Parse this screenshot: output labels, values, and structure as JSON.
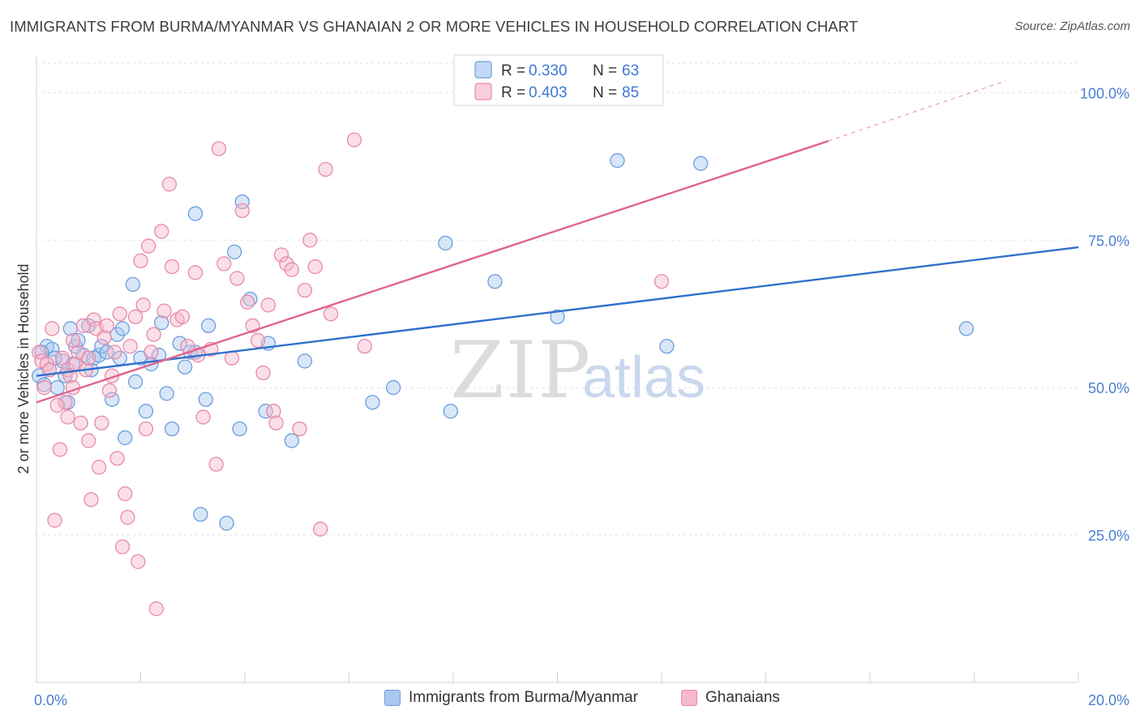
{
  "title": "IMMIGRANTS FROM BURMA/MYANMAR VS GHANAIAN 2 OR MORE VEHICLES IN HOUSEHOLD CORRELATION CHART",
  "source": "Source: ZipAtlas.com",
  "watermark": {
    "zip": "ZIP",
    "atlas": "atlas"
  },
  "colors": {
    "blue_fill": "#a9c8f0",
    "blue_stroke": "#6b9ee0",
    "blue_line": "#2f6fcc",
    "pink_fill": "#f6b8cc",
    "pink_stroke": "#e889a8",
    "pink_line": "#e0648f",
    "tick_label": "#4a7fd0",
    "grid": "#dde2ea"
  },
  "chart_data": {
    "type": "scatter",
    "title": "IMMIGRANTS FROM BURMA/MYANMAR VS GHANAIAN 2 OR MORE VEHICLES IN HOUSEHOLD CORRELATION CHART",
    "xlabel": "",
    "ylabel": "2 or more Vehicles in Household",
    "xlim": [
      0,
      20
    ],
    "ylim": [
      0,
      105
    ],
    "x_tick_labels": [
      "0.0%",
      "20.0%"
    ],
    "y_ticks": [
      25,
      50,
      75,
      100
    ],
    "y_tick_labels": [
      "25.0%",
      "50.0%",
      "75.0%",
      "100.0%"
    ],
    "grid": true,
    "legend_placement": "top-center",
    "legend": [
      {
        "r_label": "R = ",
        "r_value": "0.330",
        "n_label": "N = ",
        "n_value": "63"
      },
      {
        "r_label": "R = ",
        "r_value": "0.403",
        "n_label": "N = ",
        "n_value": "85"
      }
    ],
    "series": [
      {
        "name": "Immigrants from Burma/Myanmar",
        "color": "blue",
        "trend": {
          "x0": 0,
          "y0": 52,
          "x1": 20,
          "y1": 73.8,
          "dashed_from": null
        },
        "points": [
          [
            0.05,
            52
          ],
          [
            0.15,
            50.5
          ],
          [
            0.2,
            57
          ],
          [
            0.3,
            56.5
          ],
          [
            0.4,
            50
          ],
          [
            0.5,
            54.5
          ],
          [
            0.6,
            47.5
          ],
          [
            0.7,
            54
          ],
          [
            0.65,
            60
          ],
          [
            0.75,
            57
          ],
          [
            0.8,
            58
          ],
          [
            0.9,
            55.5
          ],
          [
            1.0,
            60.5
          ],
          [
            1.05,
            53
          ],
          [
            1.1,
            55
          ],
          [
            1.2,
            55.5
          ],
          [
            1.25,
            57
          ],
          [
            1.35,
            56
          ],
          [
            1.45,
            48
          ],
          [
            1.55,
            59
          ],
          [
            1.65,
            60
          ],
          [
            1.6,
            55
          ],
          [
            1.7,
            41.5
          ],
          [
            1.85,
            67.5
          ],
          [
            1.9,
            51
          ],
          [
            2.0,
            55
          ],
          [
            2.1,
            46
          ],
          [
            2.2,
            54
          ],
          [
            2.35,
            55.5
          ],
          [
            2.4,
            61
          ],
          [
            2.5,
            49
          ],
          [
            2.6,
            43
          ],
          [
            2.75,
            57.5
          ],
          [
            2.85,
            53.5
          ],
          [
            2.95,
            56
          ],
          [
            3.05,
            56
          ],
          [
            3.05,
            79.5
          ],
          [
            3.15,
            28.5
          ],
          [
            3.25,
            48
          ],
          [
            3.3,
            60.5
          ],
          [
            3.65,
            27
          ],
          [
            3.8,
            73
          ],
          [
            3.9,
            43
          ],
          [
            3.95,
            81.5
          ],
          [
            4.1,
            65
          ],
          [
            4.4,
            46
          ],
          [
            4.45,
            57.5
          ],
          [
            4.9,
            41
          ],
          [
            5.15,
            54.5
          ],
          [
            6.45,
            47.5
          ],
          [
            6.85,
            50
          ],
          [
            7.85,
            74.5
          ],
          [
            7.95,
            46
          ],
          [
            8.8,
            68
          ],
          [
            10.0,
            62
          ],
          [
            11.15,
            88.5
          ],
          [
            12.1,
            57
          ],
          [
            12.75,
            88
          ],
          [
            17.85,
            60
          ],
          [
            0.1,
            56
          ],
          [
            0.35,
            55
          ],
          [
            0.55,
            52
          ],
          [
            0.25,
            53
          ]
        ]
      },
      {
        "name": "Ghanaians",
        "color": "pink",
        "trend": {
          "x0": 0,
          "y0": 47.5,
          "x1": 15.2,
          "y1": 91.8,
          "x2": 18.6,
          "y2": 102,
          "dashed_from": 15.2
        },
        "points": [
          [
            0.05,
            56
          ],
          [
            0.1,
            54.5
          ],
          [
            0.15,
            50
          ],
          [
            0.2,
            54
          ],
          [
            0.25,
            53
          ],
          [
            0.35,
            27.5
          ],
          [
            0.45,
            39.5
          ],
          [
            0.5,
            55
          ],
          [
            0.55,
            47.5
          ],
          [
            0.6,
            53
          ],
          [
            0.65,
            52
          ],
          [
            0.7,
            50
          ],
          [
            0.75,
            54
          ],
          [
            0.8,
            56
          ],
          [
            0.85,
            44
          ],
          [
            0.9,
            60.5
          ],
          [
            0.95,
            53
          ],
          [
            1.0,
            41
          ],
          [
            1.05,
            31
          ],
          [
            1.1,
            61.5
          ],
          [
            1.15,
            60
          ],
          [
            1.2,
            36.5
          ],
          [
            1.25,
            44
          ],
          [
            1.3,
            58.5
          ],
          [
            1.35,
            60.5
          ],
          [
            1.4,
            49.5
          ],
          [
            1.45,
            52
          ],
          [
            1.5,
            56
          ],
          [
            1.55,
            38
          ],
          [
            1.6,
            62.5
          ],
          [
            1.65,
            23
          ],
          [
            1.7,
            32
          ],
          [
            1.75,
            28
          ],
          [
            1.8,
            57
          ],
          [
            1.9,
            62
          ],
          [
            1.95,
            20.5
          ],
          [
            2.0,
            71.5
          ],
          [
            2.05,
            64
          ],
          [
            2.1,
            43
          ],
          [
            2.15,
            74
          ],
          [
            2.2,
            56
          ],
          [
            2.25,
            59
          ],
          [
            2.3,
            12.5
          ],
          [
            2.4,
            76.5
          ],
          [
            2.45,
            63
          ],
          [
            2.55,
            84.5
          ],
          [
            2.6,
            70.5
          ],
          [
            2.7,
            61.5
          ],
          [
            2.8,
            62
          ],
          [
            2.9,
            57
          ],
          [
            3.05,
            69.5
          ],
          [
            3.1,
            55.5
          ],
          [
            3.2,
            45
          ],
          [
            3.35,
            56.5
          ],
          [
            3.45,
            37
          ],
          [
            3.5,
            90.5
          ],
          [
            3.6,
            71
          ],
          [
            3.75,
            55
          ],
          [
            3.85,
            68.5
          ],
          [
            3.95,
            80
          ],
          [
            4.05,
            64.5
          ],
          [
            4.15,
            60.5
          ],
          [
            4.25,
            58
          ],
          [
            4.35,
            52.5
          ],
          [
            4.45,
            64
          ],
          [
            4.55,
            46
          ],
          [
            4.6,
            44
          ],
          [
            4.7,
            72.5
          ],
          [
            4.8,
            71
          ],
          [
            4.9,
            70
          ],
          [
            5.05,
            43
          ],
          [
            5.15,
            66.5
          ],
          [
            5.25,
            75
          ],
          [
            5.35,
            70.5
          ],
          [
            5.45,
            26
          ],
          [
            5.55,
            87
          ],
          [
            5.65,
            62.5
          ],
          [
            6.1,
            92
          ],
          [
            6.3,
            57
          ],
          [
            12.0,
            68
          ],
          [
            0.3,
            60
          ],
          [
            0.4,
            47
          ],
          [
            0.6,
            45
          ],
          [
            0.7,
            58
          ],
          [
            1.0,
            55
          ]
        ]
      }
    ]
  },
  "legend_bottom": [
    {
      "label": "Immigrants from Burma/Myanmar"
    },
    {
      "label": "Ghanaians"
    }
  ]
}
